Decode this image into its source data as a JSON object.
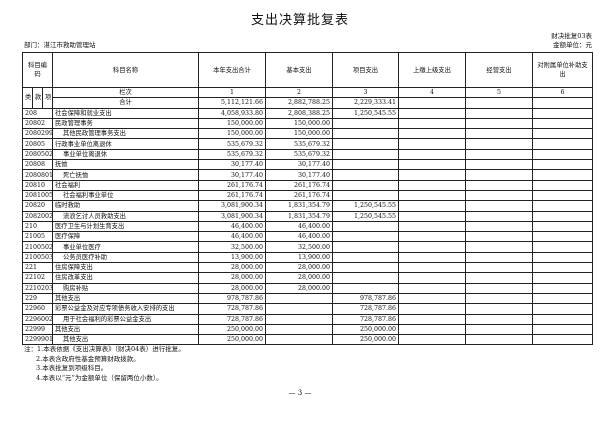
{
  "title": "支出决算批复表",
  "department": "部门：湛江市救助管理站",
  "form_no": "财决批复03表",
  "unit": "金额单位：元",
  "headers": {
    "code": "科目编码",
    "name": "科目名称",
    "c1": "本年支出合计",
    "c2": "基本支出",
    "c3": "项目支出",
    "c4": "上缴上级支出",
    "c5": "经营支出",
    "c6": "对附属单位补助支出",
    "lei": "类",
    "kuan": "款",
    "xiang": "项",
    "lanci": "栏次",
    "n1": "1",
    "n2": "2",
    "n3": "3",
    "n4": "4",
    "n5": "5",
    "n6": "6"
  },
  "total": {
    "label": "合计",
    "c1": "5,112,121.66",
    "c2": "2,882,788.25",
    "c3": "2,229,333.41"
  },
  "rows": [
    {
      "code": "208",
      "name": "社会保障和就业支出",
      "c1": "4,058,933.80",
      "c2": "2,808,388.25",
      "c3": "1,250,545.55",
      "indent": false
    },
    {
      "code": "20802",
      "name": "民政管理事务",
      "c1": "150,000.00",
      "c2": "150,000.00",
      "c3": "",
      "indent": false
    },
    {
      "code": "2080299",
      "name": "其他民政管理事务支出",
      "c1": "150,000.00",
      "c2": "150,000.00",
      "c3": "",
      "indent": true
    },
    {
      "code": "20805",
      "name": "行政事业单位离退休",
      "c1": "535,679.32",
      "c2": "535,679.32",
      "c3": "",
      "indent": false
    },
    {
      "code": "2080502",
      "name": "事业单位离退休",
      "c1": "535,679.32",
      "c2": "535,679.32",
      "c3": "",
      "indent": true
    },
    {
      "code": "20808",
      "name": "抚恤",
      "c1": "30,177.40",
      "c2": "30,177.40",
      "c3": "",
      "indent": false
    },
    {
      "code": "2080801",
      "name": "死亡抚恤",
      "c1": "30,177.40",
      "c2": "30,177.40",
      "c3": "",
      "indent": true
    },
    {
      "code": "20810",
      "name": "社会福利",
      "c1": "261,176.74",
      "c2": "261,176.74",
      "c3": "",
      "indent": false
    },
    {
      "code": "2081005",
      "name": "社会福利事业单位",
      "c1": "261,176.74",
      "c2": "261,176.74",
      "c3": "",
      "indent": true
    },
    {
      "code": "20820",
      "name": "临时救助",
      "c1": "3,081,900.34",
      "c2": "1,831,354.79",
      "c3": "1,250,545.55",
      "indent": false
    },
    {
      "code": "2082002",
      "name": "流浪乞讨人员救助支出",
      "c1": "3,081,900.34",
      "c2": "1,831,354.79",
      "c3": "1,250,545.55",
      "indent": true
    },
    {
      "code": "210",
      "name": "医疗卫生与计划生育支出",
      "c1": "46,400.00",
      "c2": "46,400.00",
      "c3": "",
      "indent": false
    },
    {
      "code": "21005",
      "name": "医疗保障",
      "c1": "46,400.00",
      "c2": "46,400.00",
      "c3": "",
      "indent": false
    },
    {
      "code": "2100502",
      "name": "事业单位医疗",
      "c1": "32,500.00",
      "c2": "32,500.00",
      "c3": "",
      "indent": true
    },
    {
      "code": "2100503",
      "name": "公务员医疗补助",
      "c1": "13,900.00",
      "c2": "13,900.00",
      "c3": "",
      "indent": true
    },
    {
      "code": "221",
      "name": "住房保障支出",
      "c1": "28,000.00",
      "c2": "28,000.00",
      "c3": "",
      "indent": false
    },
    {
      "code": "22102",
      "name": "住房改革支出",
      "c1": "28,000.00",
      "c2": "28,000.00",
      "c3": "",
      "indent": false
    },
    {
      "code": "2210203",
      "name": "购房补贴",
      "c1": "28,000.00",
      "c2": "28,000.00",
      "c3": "",
      "indent": true
    },
    {
      "code": "229",
      "name": "其他支出",
      "c1": "978,787.86",
      "c2": "",
      "c3": "978,787.86",
      "indent": false
    },
    {
      "code": "22960",
      "name": "彩票公益金及对应专项债务收入安排的支出",
      "c1": "728,787.86",
      "c2": "",
      "c3": "728,787.86",
      "indent": false
    },
    {
      "code": "2296002",
      "name": "用于社会福利的彩票公益金支出",
      "c1": "728,787.86",
      "c2": "",
      "c3": "728,787.86",
      "indent": true
    },
    {
      "code": "22999",
      "name": "其他支出",
      "c1": "250,000.00",
      "c2": "",
      "c3": "250,000.00",
      "indent": false
    },
    {
      "code": "2299901",
      "name": "其他支出",
      "c1": "250,000.00",
      "c2": "",
      "c3": "250,000.00",
      "indent": true
    }
  ],
  "notes": [
    "注：1.本表依据《支出决算表》（财决04表）进行批复。",
    "2.本表含政府性基金预算财政拨款。",
    "3.本表批复到项级科目。",
    "4.本表以“元”为金额单位（保留两位小数）。"
  ],
  "page_number": "— 3 —"
}
